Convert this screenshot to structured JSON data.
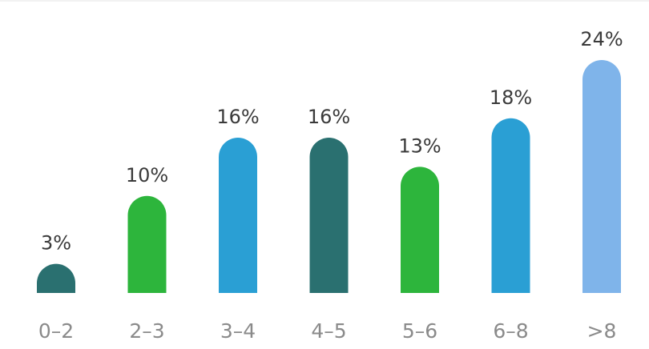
{
  "chart_data": {
    "type": "bar",
    "title": "",
    "xlabel": "",
    "ylabel": "",
    "categories": [
      "0–2",
      "2–3",
      "3–4",
      "4–5",
      "5–6",
      "6–8",
      ">8"
    ],
    "values": [
      3,
      10,
      16,
      16,
      13,
      18,
      24
    ],
    "data_labels": [
      "3%",
      "10%",
      "16%",
      "16%",
      "13%",
      "18%",
      "24%"
    ],
    "unit": "%",
    "ylim": [
      0,
      24
    ],
    "grid": false,
    "legend": "none",
    "bar_colors": [
      "#2a7070",
      "#2db53c",
      "#2a9fd4",
      "#2a7070",
      "#2db53c",
      "#2a9fd4",
      "#7fb4ea"
    ],
    "bar_shape": "rounded-top"
  }
}
